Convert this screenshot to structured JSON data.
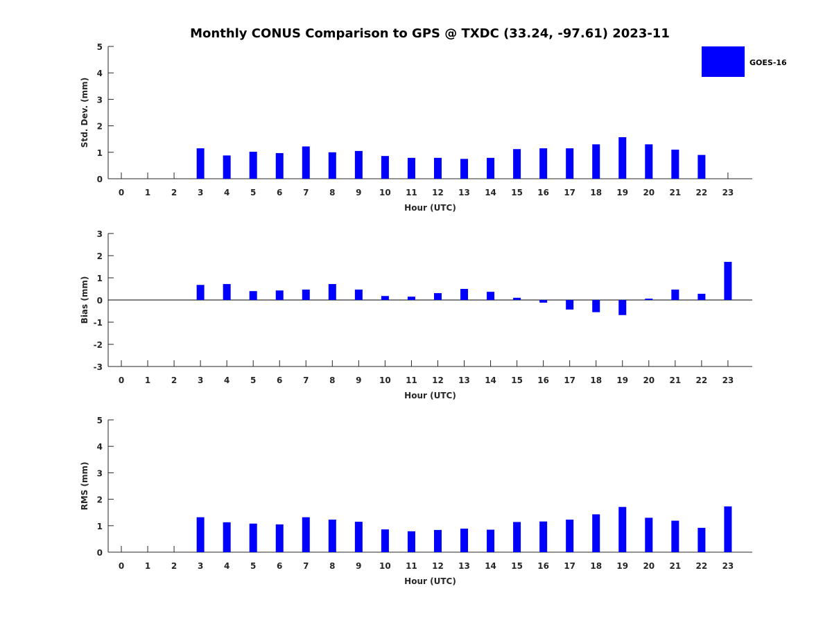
{
  "title": "Monthly CONUS Comparison to GPS @ TXDC (33.24, -97.61) 2023-11",
  "legend": {
    "label": "GOES-16",
    "color": "#0000ff",
    "placement": "top-right"
  },
  "chart_data": [
    {
      "type": "bar",
      "xlabel": "Hour (UTC)",
      "ylabel": "Std. Dev. (mm)",
      "ylim": [
        0,
        5
      ],
      "yticks": [
        0,
        1,
        2,
        3,
        4,
        5
      ],
      "categories": [
        "0",
        "1",
        "2",
        "3",
        "4",
        "5",
        "6",
        "7",
        "8",
        "9",
        "10",
        "11",
        "12",
        "13",
        "14",
        "15",
        "16",
        "17",
        "18",
        "19",
        "20",
        "21",
        "22",
        "23"
      ],
      "series": [
        {
          "name": "GOES-16",
          "color": "#0000ff",
          "values": [
            null,
            null,
            null,
            1.15,
            0.88,
            1.02,
            0.97,
            1.22,
            1.0,
            1.05,
            0.86,
            0.79,
            0.79,
            0.75,
            0.79,
            1.12,
            1.15,
            1.15,
            1.3,
            1.57,
            1.3,
            1.1,
            0.9,
            null
          ]
        }
      ]
    },
    {
      "type": "bar",
      "xlabel": "Hour (UTC)",
      "ylabel": "Bias (mm)",
      "ylim": [
        -3,
        3
      ],
      "yticks": [
        -3,
        -2,
        -1,
        0,
        1,
        2,
        3
      ],
      "categories": [
        "0",
        "1",
        "2",
        "3",
        "4",
        "5",
        "6",
        "7",
        "8",
        "9",
        "10",
        "11",
        "12",
        "13",
        "14",
        "15",
        "16",
        "17",
        "18",
        "19",
        "20",
        "21",
        "22",
        "23"
      ],
      "series": [
        {
          "name": "GOES-16",
          "color": "#0000ff",
          "values": [
            null,
            null,
            null,
            0.68,
            0.72,
            0.4,
            0.43,
            0.47,
            0.72,
            0.47,
            0.18,
            0.15,
            0.31,
            0.5,
            0.37,
            0.1,
            -0.12,
            -0.43,
            -0.55,
            -0.68,
            0.06,
            0.47,
            0.28,
            1.72
          ]
        }
      ]
    },
    {
      "type": "bar",
      "xlabel": "Hour (UTC)",
      "ylabel": "RMS (mm)",
      "ylim": [
        0,
        5
      ],
      "yticks": [
        0,
        1,
        2,
        3,
        4,
        5
      ],
      "categories": [
        "0",
        "1",
        "2",
        "3",
        "4",
        "5",
        "6",
        "7",
        "8",
        "9",
        "10",
        "11",
        "12",
        "13",
        "14",
        "15",
        "16",
        "17",
        "18",
        "19",
        "20",
        "21",
        "22",
        "23"
      ],
      "series": [
        {
          "name": "GOES-16",
          "color": "#0000ff",
          "values": [
            null,
            null,
            null,
            1.32,
            1.13,
            1.08,
            1.05,
            1.32,
            1.23,
            1.15,
            0.86,
            0.79,
            0.84,
            0.89,
            0.85,
            1.14,
            1.16,
            1.23,
            1.43,
            1.71,
            1.3,
            1.19,
            0.92,
            1.73
          ]
        }
      ]
    }
  ]
}
